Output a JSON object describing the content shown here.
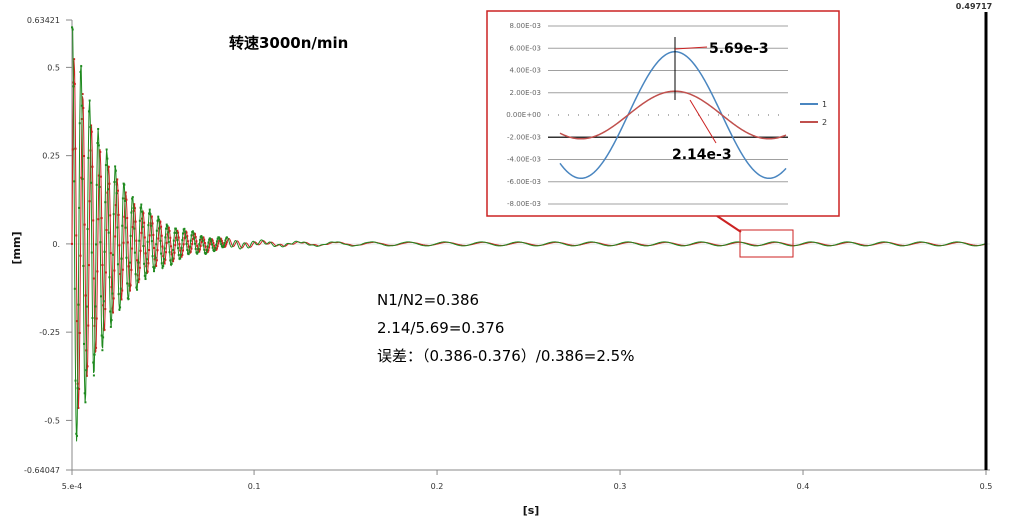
{
  "chart_data": [
    {
      "type": "line",
      "title": "",
      "xlabel": "[s]",
      "ylabel": "[mm]",
      "xlim": [
        0.0005,
        0.5
      ],
      "ylim": [
        -0.64047,
        0.63421
      ],
      "x_ticks": [
        "5.e-4",
        "0.1",
        "0.2",
        "0.3",
        "0.4",
        "0.5"
      ],
      "y_ticks": [
        "0.63421",
        "0.5",
        "0.25",
        "0.",
        "-0.25",
        "-0.5",
        "-0.64047"
      ],
      "cursor": {
        "x": 0.49717,
        "label": "0.49717"
      },
      "series": [
        {
          "color": "#cc2222",
          "peak_amplitude": 0.55,
          "settle_x": 0.09,
          "steady_amplitude": 0.0044,
          "steady_period": 0.02
        },
        {
          "color": "#1f8a1f",
          "peak_amplitude": 0.63421,
          "settle_x": 0.09,
          "steady_amplitude": 0.0057,
          "steady_period": 0.02
        }
      ],
      "annotations": [
        "转速3000n/min",
        "N1/N2=0.386",
        "2.14/5.69=0.376",
        "误差：（0.386-0.376）/0.386=2.5%"
      ]
    },
    {
      "type": "line",
      "title": "",
      "y_ticks": [
        "8.00E-03",
        "6.00E-03",
        "4.00E-03",
        "2.00E-03",
        "0.00E+00",
        "-2.00E-03",
        "-4.00E-03",
        "-6.00E-03",
        "-8.00E-03"
      ],
      "ylim": [
        -0.008,
        0.008
      ],
      "series": [
        {
          "name": "1",
          "color": "#4a86c0",
          "amplitude": 0.00569
        },
        {
          "name": "2",
          "color": "#c0504d",
          "amplitude": 0.00214
        }
      ],
      "annotations": {
        "series1_peak": "5.69e-3",
        "series2_peak": "2.14e-3"
      }
    }
  ],
  "colors": {
    "inset_frame": "#cc2222",
    "grid": "#d9d9d9",
    "cursor": "#000000"
  }
}
